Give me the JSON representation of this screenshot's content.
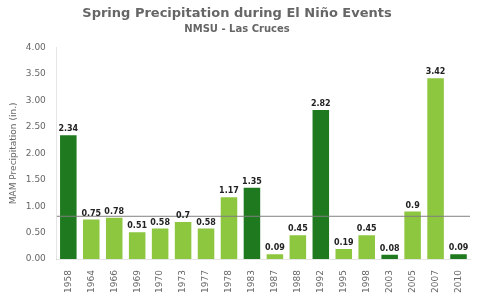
{
  "chart_data": {
    "type": "bar",
    "title": "Spring Precipitation during El Niño Events",
    "subtitle": "NMSU - Las Cruces",
    "y_label": "MAM Precipitation (in.)",
    "categories": [
      "1958",
      "1964",
      "1966",
      "1969",
      "1970",
      "1973",
      "1977",
      "1978",
      "1983",
      "1987",
      "1988",
      "1992",
      "1995",
      "1998",
      "2003",
      "2005",
      "2007",
      "2010"
    ],
    "values": [
      2.34,
      0.75,
      0.78,
      0.51,
      0.58,
      0.7,
      0.58,
      1.17,
      1.35,
      0.09,
      0.45,
      2.82,
      0.19,
      0.45,
      0.08,
      0.9,
      3.42,
      0.09
    ],
    "colors": [
      "#1f7a1f",
      "#8dc63f",
      "#8dc63f",
      "#8dc63f",
      "#8dc63f",
      "#8dc63f",
      "#8dc63f",
      "#8dc63f",
      "#1f7a1f",
      "#8dc63f",
      "#8dc63f",
      "#1f7a1f",
      "#8dc63f",
      "#8dc63f",
      "#1f7a1f",
      "#8dc63f",
      "#8dc63f",
      "#1f7a1f"
    ],
    "reference_line": 0.81,
    "ylim": [
      0.0,
      4.0
    ],
    "yticks": [
      {
        "value": 0.0,
        "label": "0.00"
      },
      {
        "value": 0.5,
        "label": "0.50"
      },
      {
        "value": 1.0,
        "label": "1.00"
      },
      {
        "value": 1.5,
        "label": "1.50"
      },
      {
        "value": 2.0,
        "label": "2.00"
      },
      {
        "value": 2.5,
        "label": "2.50"
      },
      {
        "value": 3.0,
        "label": "3.00"
      },
      {
        "value": 3.5,
        "label": "3.50"
      },
      {
        "value": 4.0,
        "label": "4.00"
      }
    ],
    "data_labels": true,
    "grid": false
  }
}
